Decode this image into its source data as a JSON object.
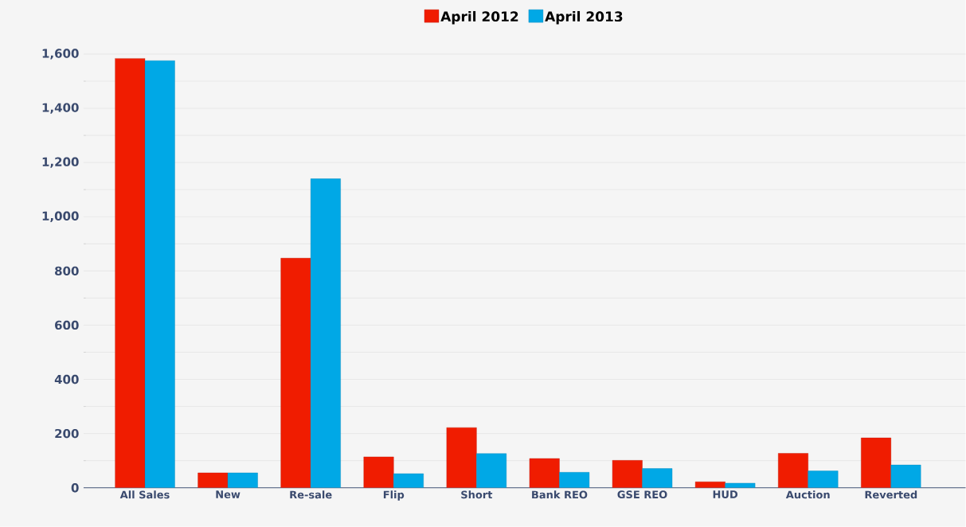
{
  "chart_data": {
    "type": "bar",
    "categories": [
      "All Sales",
      "New",
      "Re-sale",
      "Flip",
      "Short",
      "Bank REO",
      "GSE REO",
      "HUD",
      "Auction",
      "Reverted"
    ],
    "series": [
      {
        "name": "April 2012",
        "color": "#f01c00",
        "values": [
          1584,
          55,
          847,
          114,
          222,
          108,
          101,
          22,
          127,
          184
        ]
      },
      {
        "name": "April 2013",
        "color": "#00a8e6",
        "values": [
          1576,
          55,
          1140,
          52,
          126,
          57,
          71,
          17,
          62,
          84
        ]
      }
    ],
    "ylim": [
      0,
      1600
    ],
    "yticks": [
      {
        "value": 0,
        "label": "0"
      },
      {
        "value": 200,
        "label": "200"
      },
      {
        "value": 400,
        "label": "400"
      },
      {
        "value": 600,
        "label": "600"
      },
      {
        "value": 800,
        "label": "800"
      },
      {
        "value": 1000,
        "label": "1,000"
      },
      {
        "value": 1200,
        "label": "1,200"
      },
      {
        "value": 1400,
        "label": "1,400"
      },
      {
        "value": 1600,
        "label": "1,600"
      }
    ],
    "grid": "y",
    "legend": "top"
  }
}
